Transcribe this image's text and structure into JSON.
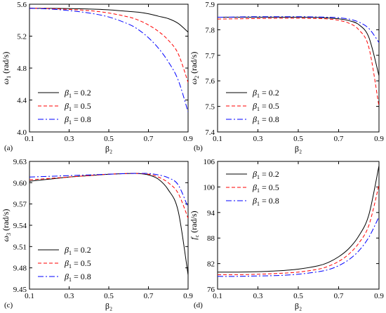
{
  "chart_data": [
    {
      "type": "line",
      "panel_label": "(a)",
      "xlabel": "β₂",
      "ylabel_symbol": "ω",
      "ylabel_sub": "1",
      "ylabel_unit": "(rad/s)",
      "xlim": [
        0.1,
        0.9
      ],
      "ylim": [
        4.0,
        5.6
      ],
      "xticks": [
        "0.1",
        "0.3",
        "0.5",
        "0.7",
        "0.9"
      ],
      "xtick_vals": [
        0.1,
        0.3,
        0.5,
        0.7,
        0.9
      ],
      "yticks": [
        "4.0",
        "4.4",
        "4.8",
        "5.2",
        "5.6"
      ],
      "ytick_vals": [
        4.0,
        4.4,
        4.8,
        5.2,
        5.6
      ],
      "legend_position": "bottom-left",
      "x": [
        0.1,
        0.2,
        0.3,
        0.4,
        0.5,
        0.6,
        0.65,
        0.7,
        0.75,
        0.8,
        0.85,
        0.9
      ],
      "series": [
        {
          "name": "0.2",
          "values": [
            5.55,
            5.548,
            5.545,
            5.54,
            5.53,
            5.51,
            5.5,
            5.48,
            5.45,
            5.42,
            5.36,
            5.25
          ]
        },
        {
          "name": "0.5",
          "values": [
            5.55,
            5.545,
            5.535,
            5.52,
            5.49,
            5.44,
            5.4,
            5.34,
            5.26,
            5.15,
            4.98,
            4.62
          ]
        },
        {
          "name": "0.8",
          "values": [
            5.55,
            5.54,
            5.52,
            5.49,
            5.44,
            5.35,
            5.28,
            5.18,
            5.05,
            4.88,
            4.65,
            4.25
          ]
        }
      ]
    },
    {
      "type": "line",
      "panel_label": "(b)",
      "xlabel": "β₂",
      "ylabel_symbol": "ω",
      "ylabel_sub": "2",
      "ylabel_unit": "(rad/s)",
      "xlim": [
        0.1,
        0.9
      ],
      "ylim": [
        7.4,
        7.9
      ],
      "xticks": [
        "0.1",
        "0.3",
        "0.5",
        "0.7",
        "0.9"
      ],
      "xtick_vals": [
        0.1,
        0.3,
        0.5,
        0.7,
        0.9
      ],
      "yticks": [
        "7.4",
        "7.5",
        "7.6",
        "7.7",
        "7.8",
        "7.9"
      ],
      "ytick_vals": [
        7.4,
        7.5,
        7.6,
        7.7,
        7.8,
        7.9
      ],
      "legend_position": "bottom-left",
      "x": [
        0.1,
        0.2,
        0.3,
        0.4,
        0.5,
        0.6,
        0.65,
        0.7,
        0.75,
        0.8,
        0.85,
        0.9
      ],
      "series": [
        {
          "name": "0.2",
          "values": [
            7.849,
            7.849,
            7.849,
            7.849,
            7.849,
            7.848,
            7.846,
            7.843,
            7.836,
            7.82,
            7.77,
            7.62
          ]
        },
        {
          "name": "0.5",
          "values": [
            7.842,
            7.843,
            7.844,
            7.845,
            7.845,
            7.844,
            7.842,
            7.837,
            7.826,
            7.8,
            7.73,
            7.5
          ]
        },
        {
          "name": "0.8",
          "values": [
            7.849,
            7.85,
            7.851,
            7.851,
            7.851,
            7.85,
            7.849,
            7.847,
            7.842,
            7.83,
            7.805,
            7.75
          ]
        }
      ]
    },
    {
      "type": "line",
      "panel_label": "(c)",
      "xlabel": "β₂",
      "ylabel_symbol": "ω",
      "ylabel_sub": "3",
      "ylabel_unit": "(rad/s)",
      "xlim": [
        0.1,
        0.9
      ],
      "ylim": [
        9.45,
        9.63
      ],
      "xticks": [
        "0.1",
        "0.3",
        "0.5",
        "0.7",
        "0.9"
      ],
      "xtick_vals": [
        0.1,
        0.3,
        0.5,
        0.7,
        0.9
      ],
      "yticks": [
        "9.45",
        "9.48",
        "9.51",
        "9.54",
        "9.57",
        "9.60",
        "9.63"
      ],
      "ytick_vals": [
        9.45,
        9.48,
        9.51,
        9.54,
        9.57,
        9.6,
        9.63
      ],
      "legend_position": "bottom-left",
      "x": [
        0.1,
        0.2,
        0.3,
        0.4,
        0.5,
        0.6,
        0.65,
        0.7,
        0.75,
        0.8,
        0.85,
        0.9
      ],
      "series": [
        {
          "name": "0.2",
          "values": [
            9.602,
            9.605,
            9.608,
            9.61,
            9.612,
            9.613,
            9.613,
            9.611,
            9.605,
            9.59,
            9.56,
            9.47
          ]
        },
        {
          "name": "0.5",
          "values": [
            9.604,
            9.606,
            9.608,
            9.61,
            9.612,
            9.613,
            9.613,
            9.612,
            9.608,
            9.6,
            9.585,
            9.55
          ]
        },
        {
          "name": "0.8",
          "values": [
            9.608,
            9.609,
            9.61,
            9.611,
            9.612,
            9.613,
            9.613,
            9.613,
            9.611,
            9.607,
            9.597,
            9.565
          ]
        }
      ]
    },
    {
      "type": "line",
      "panel_label": "(d)",
      "xlabel": "β₂",
      "ylabel_symbol": "f",
      "ylabel_sub": "c",
      "ylabel_unit": "(rad/s)",
      "xlim": [
        0.1,
        0.9
      ],
      "ylim": [
        76,
        106
      ],
      "xticks": [
        "0.1",
        "0.3",
        "0.5",
        "0.7",
        "0.9"
      ],
      "xtick_vals": [
        0.1,
        0.3,
        0.5,
        0.7,
        0.9
      ],
      "yticks": [
        "76",
        "82",
        "88",
        "94",
        "100",
        "106"
      ],
      "ytick_vals": [
        76,
        82,
        88,
        94,
        100,
        106
      ],
      "legend_position": "top-left",
      "x": [
        0.1,
        0.2,
        0.3,
        0.4,
        0.5,
        0.6,
        0.65,
        0.7,
        0.75,
        0.8,
        0.85,
        0.9
      ],
      "series": [
        {
          "name": "0.2",
          "values": [
            80.0,
            80.0,
            80.1,
            80.3,
            80.7,
            81.5,
            82.3,
            83.6,
            85.5,
            88.5,
            93.5,
            105.0
          ]
        },
        {
          "name": "0.5",
          "values": [
            79.4,
            79.4,
            79.5,
            79.7,
            80.0,
            80.7,
            81.4,
            82.5,
            84.2,
            86.8,
            91.0,
            100.5
          ]
        },
        {
          "name": "0.8",
          "values": [
            79.0,
            79.0,
            79.1,
            79.2,
            79.5,
            80.1,
            80.6,
            81.5,
            82.9,
            85.0,
            88.2,
            93.0
          ]
        }
      ]
    }
  ],
  "legend_symbol": "β",
  "legend_sub": "1",
  "legend_eq": " = ",
  "series_styles": [
    {
      "color": "#000000",
      "dash": "none"
    },
    {
      "color": "#ff0000",
      "dash": "5,3"
    },
    {
      "color": "#0000ff",
      "dash": "8,3,2,3"
    }
  ]
}
